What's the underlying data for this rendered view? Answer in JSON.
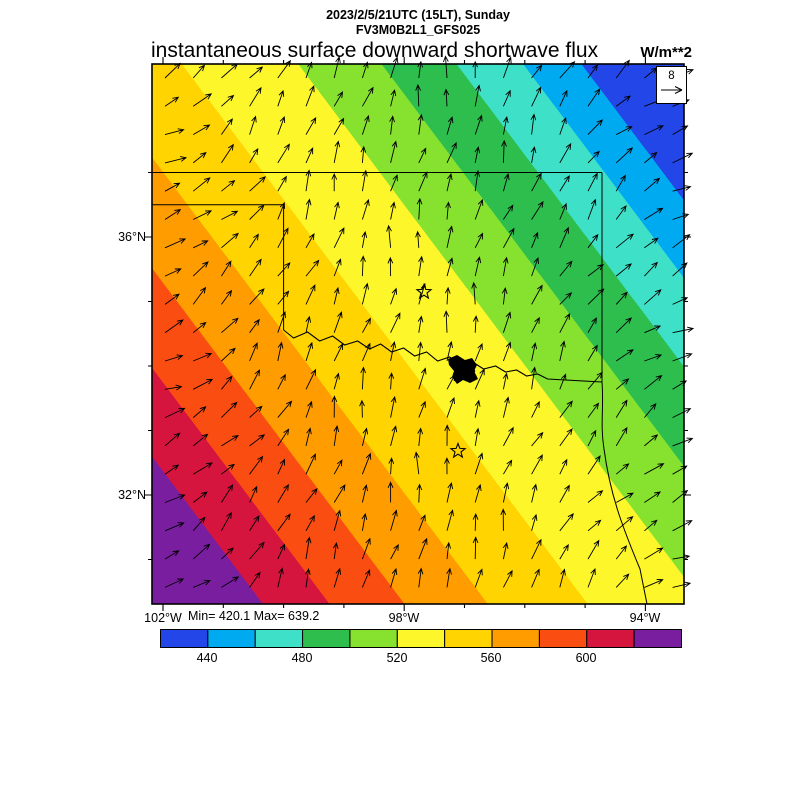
{
  "header": {
    "datetime_line": "2023/2/5/21UTC (15LT), Sunday",
    "model_line": "FV3M0B2L1_GFS025",
    "title": "instantaneous surface downward shortwave flux",
    "units": "W/m**2"
  },
  "axes": {
    "lat_labels": [
      {
        "text": "36°N"
      },
      {
        "text": "32°N"
      }
    ],
    "lon_labels": [
      {
        "text": "102°W"
      },
      {
        "text": "98°W"
      },
      {
        "text": "94°W"
      }
    ],
    "min_max": "Min= 420.1 Max= 639.2"
  },
  "vector_ref": {
    "speed": "8"
  },
  "chart_data": {
    "type": "heatmap",
    "title": "instantaneous surface downward shortwave flux",
    "units": "W/m**2",
    "valid_time": "2023/2/5/21UTC (15LT), Sunday",
    "model_run": "FV3M0B2L1_GFS025",
    "stat_min": 420.1,
    "stat_max": 639.2,
    "contour_levels": [
      420,
      440,
      460,
      480,
      500,
      520,
      540,
      560,
      580,
      600,
      620,
      640
    ],
    "palette": [
      "#2346e8",
      "#00aaf0",
      "#3fe0c8",
      "#2dbe4e",
      "#86e22e",
      "#fdf62b",
      "#ffd400",
      "#ff9c00",
      "#f94d12",
      "#d6153e",
      "#7a1ea0"
    ],
    "colorbar_labels": [
      "440",
      "480",
      "520",
      "560",
      "600"
    ],
    "x_axis": {
      "tick_labels": [
        "102°W",
        "98°W",
        "94°W"
      ],
      "approx_range_deg_west": [
        102.2,
        93.4
      ]
    },
    "y_axis": {
      "tick_labels": [
        "36°N",
        "32°N"
      ],
      "approx_range_deg_north": [
        30.3,
        38.7
      ]
    },
    "wind": {
      "reference_speed": 8,
      "pattern": "arrows point east-northeast on the west side, veering to north and northeast across the center and east of the domain"
    },
    "field_pattern": "diagonal banded field decreasing from ~640 W/m**2 (purple, southwest corner) through red, orange, yellow and green to ~420 W/m**2 (blue, northeast corner)",
    "map_region": "Texas / Oklahoma with state borders, Red River boundary, lake near map center and two star city markers"
  }
}
